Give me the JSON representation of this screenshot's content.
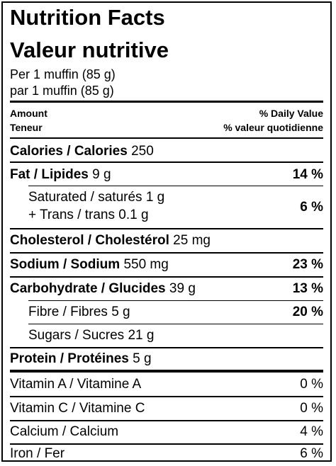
{
  "header": {
    "title_en": "Nutrition Facts",
    "title_fr": "Valeur nutritive",
    "serving_en": "Per 1 muffin (85 g)",
    "serving_fr": "par 1 muffin (85 g)"
  },
  "columns": {
    "amount_en": "Amount",
    "amount_fr": "Teneur",
    "dv_en": "% Daily Value",
    "dv_fr": "% valeur quotidienne"
  },
  "calories": {
    "label": "Calories / Calories",
    "value": "250"
  },
  "nutrients": {
    "fat": {
      "label": "Fat / Lipides",
      "value": "9 g",
      "dv": "14 %"
    },
    "saturated": {
      "label": "Saturated / saturés",
      "value": "1 g",
      "trans_label": "+ Trans / trans",
      "trans_value": "0.1 g",
      "dv": "6 %"
    },
    "cholesterol": {
      "label": "Cholesterol / Cholestérol",
      "value": "25 mg"
    },
    "sodium": {
      "label": "Sodium / Sodium",
      "value": "550 mg",
      "dv": "23 %"
    },
    "carbohydrate": {
      "label": "Carbohydrate / Glucides",
      "value": "39 g",
      "dv": "13 %"
    },
    "fibre": {
      "label": "Fibre / Fibres",
      "value": "5 g",
      "dv": "20 %"
    },
    "sugars": {
      "label": "Sugars / Sucres",
      "value": "21 g"
    },
    "protein": {
      "label": "Protein / Protéines",
      "value": "5 g"
    }
  },
  "vitamins": {
    "vitamin_a": {
      "label": "Vitamin A / Vitamine A",
      "dv": "0 %"
    },
    "vitamin_c": {
      "label": "Vitamin C / Vitamine C",
      "dv": "0 %"
    },
    "calcium": {
      "label": "Calcium / Calcium",
      "dv": "4 %"
    },
    "iron": {
      "label": "Iron / Fer",
      "dv": "6 %"
    }
  }
}
